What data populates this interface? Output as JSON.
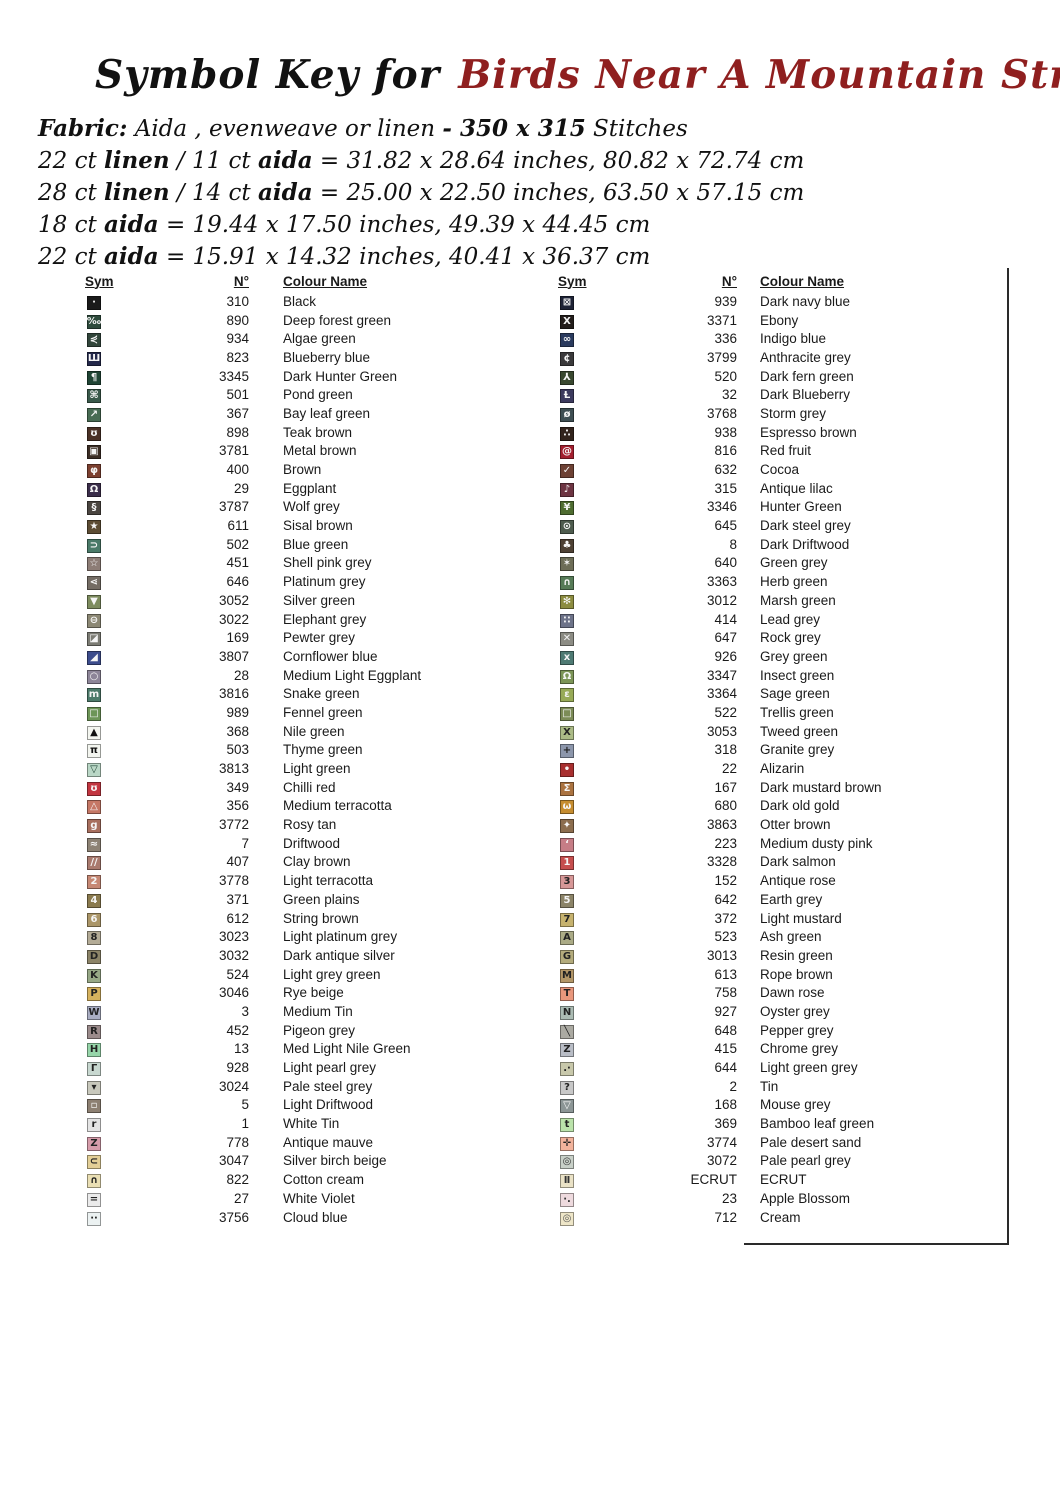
{
  "title": {
    "prefix": "Symbol Key for",
    "name": "Birds Near A Mountain Stream (small)",
    "name_color": "#8f1f1f"
  },
  "info_lines": [
    {
      "segments": [
        {
          "t": "Fabric:",
          "b": true
        },
        {
          "t": "  Aida , evenweave or  linen ",
          "b": false
        },
        {
          "t": "- 350 x 315",
          "b": true
        },
        {
          "t": " Stitches",
          "b": false
        }
      ]
    },
    {
      "segments": [
        {
          "t": "22 ct ",
          "b": false
        },
        {
          "t": "linen",
          "b": true
        },
        {
          "t": " / 11 ct ",
          "b": false
        },
        {
          "t": "aida",
          "b": true
        },
        {
          "t": " = 31.82 x 28.64 inches, 80.82 x 72.74 cm",
          "b": false
        }
      ]
    },
    {
      "segments": [
        {
          "t": "28 ct ",
          "b": false
        },
        {
          "t": "linen",
          "b": true
        },
        {
          "t": " / 14 ct ",
          "b": false
        },
        {
          "t": "aida",
          "b": true
        },
        {
          "t": " = 25.00 x 22.50 inches, 63.50 x 57.15 cm",
          "b": false
        }
      ]
    },
    {
      "segments": [
        {
          "t": "18 ct ",
          "b": false
        },
        {
          "t": "aida",
          "b": true
        },
        {
          "t": "  = 19.44 x 17.50 inches, 49.39 x 44.45 cm",
          "b": false
        }
      ]
    },
    {
      "segments": [
        {
          "t": "22 ct ",
          "b": false
        },
        {
          "t": "aida",
          "b": true
        },
        {
          "t": " = 15.91 x 14.32 inches, 40.41 x 36.37 cm",
          "b": false
        }
      ]
    }
  ],
  "table": {
    "headers": {
      "sym": "Sym",
      "number": "N°",
      "colour": "Colour Name"
    },
    "left_rows": [
      {
        "num": "310",
        "name": "Black",
        "bg": "#1a1a1a",
        "fg": "#f5f5f5",
        "glyph": "·"
      },
      {
        "num": "890",
        "name": "Deep forest green",
        "bg": "#2e4b3c",
        "fg": "#f5f5f5",
        "glyph": "‰"
      },
      {
        "num": "934",
        "name": "Algae green",
        "bg": "#31453a",
        "fg": "#f5f5f5",
        "glyph": "⋞"
      },
      {
        "num": "823",
        "name": "Blueberry blue",
        "bg": "#23284a",
        "fg": "#f5f5f5",
        "glyph": "Ш"
      },
      {
        "num": "3345",
        "name": "Dark Hunter Green",
        "bg": "#1f4434",
        "fg": "#f5f5f5",
        "glyph": "¶"
      },
      {
        "num": "501",
        "name": "Pond green",
        "bg": "#39594a",
        "fg": "#f5f5f5",
        "glyph": "⌘"
      },
      {
        "num": "367",
        "name": "Bay leaf green",
        "bg": "#486b53",
        "fg": "#f5f5f5",
        "glyph": "↗"
      },
      {
        "num": "898",
        "name": "Teak brown",
        "bg": "#4a3126",
        "fg": "#f5f5f5",
        "glyph": "ʊ"
      },
      {
        "num": "3781",
        "name": "Metal brown",
        "bg": "#3b2d24",
        "fg": "#f5f5f5",
        "glyph": "▣"
      },
      {
        "num": "400",
        "name": "Brown",
        "bg": "#7c4030",
        "fg": "#f5f5f5",
        "glyph": "φ"
      },
      {
        "num": "29",
        "name": "Eggplant",
        "bg": "#3a2d4a",
        "fg": "#f5f5f5",
        "glyph": "Ω"
      },
      {
        "num": "3787",
        "name": "Wolf grey",
        "bg": "#4a4540",
        "fg": "#f5f5f5",
        "glyph": "§"
      },
      {
        "num": "611",
        "name": "Sisal brown",
        "bg": "#5c4c33",
        "fg": "#f5f5f5",
        "glyph": "★"
      },
      {
        "num": "502",
        "name": "Blue green",
        "bg": "#4a7a68",
        "fg": "#f5f5f5",
        "glyph": "⊃"
      },
      {
        "num": "451",
        "name": "Shell pink grey",
        "bg": "#8d7d76",
        "fg": "#f5f5f5",
        "glyph": "☆"
      },
      {
        "num": "646",
        "name": "Platinum grey",
        "bg": "#746c64",
        "fg": "#f5f5f5",
        "glyph": "⋖"
      },
      {
        "num": "3052",
        "name": "Silver green",
        "bg": "#7d8c5e",
        "fg": "#f5f5f5",
        "glyph": "▼"
      },
      {
        "num": "3022",
        "name": "Elephant grey",
        "bg": "#8c8874",
        "fg": "#f5f5f5",
        "glyph": "⊖"
      },
      {
        "num": "169",
        "name": "Pewter grey",
        "bg": "#7b7b73",
        "fg": "#f5f5f5",
        "glyph": "◪"
      },
      {
        "num": "3807",
        "name": "Cornflower blue",
        "bg": "#3c4c8c",
        "fg": "#f5f5f5",
        "glyph": "◢"
      },
      {
        "num": "28",
        "name": "Medium Light Eggplant",
        "bg": "#8d8598",
        "fg": "#f5f5f5",
        "glyph": "○"
      },
      {
        "num": "3816",
        "name": "Snake green",
        "bg": "#4c7a6a",
        "fg": "#f5f5f5",
        "glyph": "m"
      },
      {
        "num": "989",
        "name": "Fennel green",
        "bg": "#6d9557",
        "fg": "#f5f5f5",
        "glyph": "□"
      },
      {
        "num": "368",
        "name": "Nile green",
        "bg": "#f4f6f0",
        "fg": "#111111",
        "glyph": "▲"
      },
      {
        "num": "503",
        "name": "Thyme green",
        "bg": "#f3f5ef",
        "fg": "#111111",
        "glyph": "π"
      },
      {
        "num": "3813",
        "name": "Light green",
        "bg": "#bad7c6",
        "fg": "#1f4535",
        "glyph": "▽"
      },
      {
        "num": "349",
        "name": "Chilli red",
        "bg": "#c23540",
        "fg": "#f5f5f5",
        "glyph": "ʊ"
      },
      {
        "num": "356",
        "name": "Medium terracotta",
        "bg": "#c57765",
        "fg": "#f5f5f5",
        "glyph": "△"
      },
      {
        "num": "3772",
        "name": "Rosy tan",
        "bg": "#a86f5e",
        "fg": "#f5f5f5",
        "glyph": "g"
      },
      {
        "num": "7",
        "name": "Driftwood",
        "bg": "#8d8274",
        "fg": "#f5f5f5",
        "glyph": "≈"
      },
      {
        "num": "407",
        "name": "Clay brown",
        "bg": "#a97a6e",
        "fg": "#f5f5f5",
        "glyph": "//"
      },
      {
        "num": "3778",
        "name": "Light terracotta",
        "bg": "#c68874",
        "fg": "#f5f5f5",
        "glyph": "2"
      },
      {
        "num": "371",
        "name": "Green plains",
        "bg": "#8a7a4e",
        "fg": "#f5f5f5",
        "glyph": "4"
      },
      {
        "num": "612",
        "name": "String brown",
        "bg": "#ab9668",
        "fg": "#f5f5f5",
        "glyph": "6"
      },
      {
        "num": "3023",
        "name": "Light platinum grey",
        "bg": "#b3ab96",
        "fg": "#222222",
        "glyph": "8"
      },
      {
        "num": "3032",
        "name": "Dark antique silver",
        "bg": "#8c8468",
        "fg": "#222222",
        "glyph": "D"
      },
      {
        "num": "524",
        "name": "Light grey green",
        "bg": "#97a886",
        "fg": "#222222",
        "glyph": "K"
      },
      {
        "num": "3046",
        "name": "Rye beige",
        "bg": "#d6b25e",
        "fg": "#222222",
        "glyph": "P"
      },
      {
        "num": "3",
        "name": "Medium Tin",
        "bg": "#a9adc2",
        "fg": "#222222",
        "glyph": "W"
      },
      {
        "num": "452",
        "name": "Pigeon grey",
        "bg": "#9b8b8b",
        "fg": "#222222",
        "glyph": "R"
      },
      {
        "num": "13",
        "name": "Med Light Nile Green",
        "bg": "#97d6aa",
        "fg": "#222222",
        "glyph": "H"
      },
      {
        "num": "928",
        "name": "Light pearl grey",
        "bg": "#c8d8d0",
        "fg": "#222222",
        "glyph": "Γ"
      },
      {
        "num": "3024",
        "name": "Pale steel grey",
        "bg": "#c8c8bc",
        "fg": "#222222",
        "glyph": "▾"
      },
      {
        "num": "5",
        "name": "Light Driftwood",
        "bg": "#8d8072",
        "fg": "#ffffff",
        "glyph": "▫"
      },
      {
        "num": "1",
        "name": "White Tin",
        "bg": "#e4e4e4",
        "fg": "#222222",
        "glyph": "r"
      },
      {
        "num": "778",
        "name": "Antique mauve",
        "bg": "#d79dab",
        "fg": "#222222",
        "glyph": "Z"
      },
      {
        "num": "3047",
        "name": "Silver birch beige",
        "bg": "#e3cf97",
        "fg": "#222222",
        "glyph": "⊂"
      },
      {
        "num": "822",
        "name": "Cotton cream",
        "bg": "#eadfb4",
        "fg": "#222222",
        "glyph": "∩"
      },
      {
        "num": "27",
        "name": "White Violet",
        "bg": "#ebebeb",
        "fg": "#222222",
        "glyph": "="
      },
      {
        "num": "3756",
        "name": "Cloud blue",
        "bg": "#ecf2f2",
        "fg": "#222222",
        "glyph": "··"
      }
    ],
    "right_rows": [
      {
        "num": "939",
        "name": "Dark navy blue",
        "bg": "#1e2336",
        "fg": "#f5f5f5",
        "glyph": "⊠"
      },
      {
        "num": "3371",
        "name": "Ebony",
        "bg": "#231d1b",
        "fg": "#f5f5f5",
        "glyph": "X"
      },
      {
        "num": "336",
        "name": "Indigo blue",
        "bg": "#2a3a5e",
        "fg": "#f5f5f5",
        "glyph": "∞"
      },
      {
        "num": "3799",
        "name": "Anthracite grey",
        "bg": "#3a393b",
        "fg": "#f5f5f5",
        "glyph": "¢"
      },
      {
        "num": "520",
        "name": "Dark fern green",
        "bg": "#39482f",
        "fg": "#f5f5f5",
        "glyph": "⅄"
      },
      {
        "num": "32",
        "name": "Dark Blueberry",
        "bg": "#3c3a5e",
        "fg": "#f5f5f5",
        "glyph": "Ƚ"
      },
      {
        "num": "3768",
        "name": "Storm grey",
        "bg": "#3e4e52",
        "fg": "#f5f5f5",
        "glyph": "ø"
      },
      {
        "num": "938",
        "name": "Espresso brown",
        "bg": "#32231c",
        "fg": "#f5f5f5",
        "glyph": "∴"
      },
      {
        "num": "816",
        "name": "Red fruit",
        "bg": "#a31e2e",
        "fg": "#f5f5f5",
        "glyph": "@"
      },
      {
        "num": "632",
        "name": "Cocoa",
        "bg": "#6d4134",
        "fg": "#f5f5f5",
        "glyph": "✓"
      },
      {
        "num": "315",
        "name": "Antique lilac",
        "bg": "#6d3442",
        "fg": "#f5f5f5",
        "glyph": "♪"
      },
      {
        "num": "3346",
        "name": "Hunter Green",
        "bg": "#4e6c30",
        "fg": "#f5f5f5",
        "glyph": "¥"
      },
      {
        "num": "645",
        "name": "Dark steel grey",
        "bg": "#4e5c4e",
        "fg": "#f5f5f5",
        "glyph": "⊙"
      },
      {
        "num": "8",
        "name": "Dark Driftwood",
        "bg": "#4e4134",
        "fg": "#f5f5f5",
        "glyph": "♣"
      },
      {
        "num": "640",
        "name": "Green grey",
        "bg": "#6d6d57",
        "fg": "#f5f5f5",
        "glyph": "✶"
      },
      {
        "num": "3363",
        "name": "Herb green",
        "bg": "#567b57",
        "fg": "#f5f5f5",
        "glyph": "∩"
      },
      {
        "num": "3012",
        "name": "Marsh green",
        "bg": "#8c8c40",
        "fg": "#f5f5f5",
        "glyph": "✻"
      },
      {
        "num": "414",
        "name": "Lead grey",
        "bg": "#6d7389",
        "fg": "#f5f5f5",
        "glyph": "∷"
      },
      {
        "num": "647",
        "name": "Rock grey",
        "bg": "#8c8c84",
        "fg": "#f5f5f5",
        "glyph": "✕"
      },
      {
        "num": "926",
        "name": "Grey green",
        "bg": "#4e7a73",
        "fg": "#f5f5f5",
        "glyph": "x"
      },
      {
        "num": "3347",
        "name": "Insect green",
        "bg": "#7c9557",
        "fg": "#f5f5f5",
        "glyph": "Ω"
      },
      {
        "num": "3364",
        "name": "Sage green",
        "bg": "#97aa57",
        "fg": "#f5f5f5",
        "glyph": "ε"
      },
      {
        "num": "522",
        "name": "Trellis green",
        "bg": "#7c8c57",
        "fg": "#f5f5f5",
        "glyph": "□"
      },
      {
        "num": "3053",
        "name": "Tweed green",
        "bg": "#abbb86",
        "fg": "#222222",
        "glyph": "X"
      },
      {
        "num": "318",
        "name": "Granite grey",
        "bg": "#8c96ab",
        "fg": "#222222",
        "glyph": "+"
      },
      {
        "num": "22",
        "name": "Alizarin",
        "bg": "#a82f2f",
        "fg": "#f5f5f5",
        "glyph": "•"
      },
      {
        "num": "167",
        "name": "Dark mustard brown",
        "bg": "#ab7340",
        "fg": "#f5f5f5",
        "glyph": "Σ"
      },
      {
        "num": "680",
        "name": "Dark old gold",
        "bg": "#c68d30",
        "fg": "#f5f5f5",
        "glyph": "ω"
      },
      {
        "num": "3863",
        "name": "Otter brown",
        "bg": "#8c6d4e",
        "fg": "#f5f5f5",
        "glyph": "✦"
      },
      {
        "num": "223",
        "name": "Medium dusty pink",
        "bg": "#c67d86",
        "fg": "#f5f5f5",
        "glyph": "ʻ"
      },
      {
        "num": "3328",
        "name": "Dark salmon",
        "bg": "#c64e4e",
        "fg": "#f5f5f5",
        "glyph": "1"
      },
      {
        "num": "152",
        "name": "Antique rose",
        "bg": "#d79797",
        "fg": "#222222",
        "glyph": "3"
      },
      {
        "num": "642",
        "name": "Earth grey",
        "bg": "#8c8468",
        "fg": "#f5f5f5",
        "glyph": "5"
      },
      {
        "num": "372",
        "name": "Light mustard",
        "bg": "#c6b26e",
        "fg": "#222222",
        "glyph": "7"
      },
      {
        "num": "523",
        "name": "Ash green",
        "bg": "#abab86",
        "fg": "#222222",
        "glyph": "A"
      },
      {
        "num": "3013",
        "name": "Resin green",
        "bg": "#b3ab7c",
        "fg": "#222222",
        "glyph": "G"
      },
      {
        "num": "613",
        "name": "Rope brown",
        "bg": "#b39768",
        "fg": "#222222",
        "glyph": "M"
      },
      {
        "num": "758",
        "name": "Dawn rose",
        "bg": "#e9977c",
        "fg": "#222222",
        "glyph": "T"
      },
      {
        "num": "927",
        "name": "Oyster grey",
        "bg": "#abbbb3",
        "fg": "#222222",
        "glyph": "N"
      },
      {
        "num": "648",
        "name": "Pepper grey",
        "bg": "#abaaa2",
        "fg": "#222222",
        "glyph": "╲"
      },
      {
        "num": "415",
        "name": "Chrome grey",
        "bg": "#b9bdc6",
        "fg": "#222222",
        "glyph": "Z"
      },
      {
        "num": "644",
        "name": "Light green grey",
        "bg": "#c8c8ab",
        "fg": "#222222",
        "glyph": ".·"
      },
      {
        "num": "2",
        "name": "Tin",
        "bg": "#c8c8c8",
        "fg": "#222222",
        "glyph": "?"
      },
      {
        "num": "168",
        "name": "Mouse grey",
        "bg": "#8c9696",
        "fg": "#ffffff",
        "glyph": "▽"
      },
      {
        "num": "369",
        "name": "Bamboo leaf green",
        "bg": "#bbe3ab",
        "fg": "#222222",
        "glyph": "t"
      },
      {
        "num": "3774",
        "name": "Pale desert sand",
        "bg": "#f2b39c",
        "fg": "#222222",
        "glyph": "✛"
      },
      {
        "num": "3072",
        "name": "Pale pearl grey",
        "bg": "#c8d0c8",
        "fg": "#333333",
        "glyph": "◎"
      },
      {
        "num": "ECRUT",
        "name": "ECRUT",
        "bg": "#eae2c6",
        "fg": "#333333",
        "glyph": "Ⅱ"
      },
      {
        "num": "23",
        "name": "Apple Blossom",
        "bg": "#eedade",
        "fg": "#333333",
        "glyph": "·."
      },
      {
        "num": "712",
        "name": "Cream",
        "bg": "#eee6c8",
        "fg": "#555555",
        "glyph": "◎"
      }
    ]
  }
}
